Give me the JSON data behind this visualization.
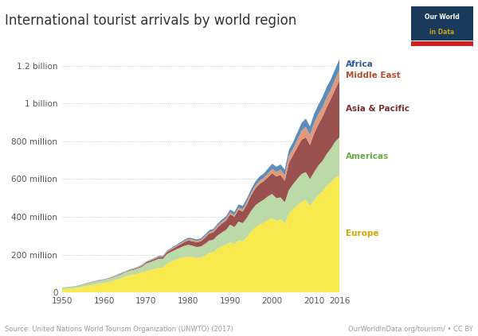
{
  "title": "International tourist arrivals by world region",
  "source_left": "Source: United Nations World Tourism Organization (UNWTO) (2017)",
  "source_right": "OurWorldInData.org/tourism/ • CC BY",
  "years": [
    1950,
    1951,
    1952,
    1953,
    1954,
    1955,
    1956,
    1957,
    1958,
    1959,
    1960,
    1961,
    1962,
    1963,
    1964,
    1965,
    1966,
    1967,
    1968,
    1969,
    1970,
    1971,
    1972,
    1973,
    1974,
    1975,
    1976,
    1977,
    1978,
    1979,
    1980,
    1981,
    1982,
    1983,
    1984,
    1985,
    1986,
    1987,
    1988,
    1989,
    1990,
    1991,
    1992,
    1993,
    1994,
    1995,
    1996,
    1997,
    1998,
    1999,
    2000,
    2001,
    2002,
    2003,
    2004,
    2005,
    2006,
    2007,
    2008,
    2009,
    2010,
    2011,
    2012,
    2013,
    2014,
    2015,
    2016
  ],
  "Europe": [
    16.8,
    18.5,
    20.0,
    22.0,
    25.0,
    30.0,
    34.0,
    38.0,
    42.0,
    46.0,
    50.4,
    55.0,
    60.0,
    67.0,
    74.0,
    83.0,
    90.0,
    94.0,
    100.0,
    107.0,
    112.0,
    118.0,
    124.0,
    130.0,
    131.0,
    153.9,
    163.0,
    172.0,
    179.0,
    186.0,
    189.5,
    186.0,
    182.0,
    184.0,
    194.0,
    209.1,
    213.0,
    232.0,
    243.0,
    253.0,
    265.6,
    255.0,
    276.0,
    271.0,
    293.0,
    323.4,
    345.0,
    359.0,
    370.0,
    383.0,
    392.8,
    378.0,
    387.0,
    365.0,
    418.0,
    441.0,
    461.0,
    480.0,
    489.4,
    459.7,
    487.8,
    516.4,
    534.8,
    566.3,
    581.8,
    607.7,
    619.7
  ],
  "Americas": [
    7.5,
    8.0,
    8.5,
    9.0,
    10.0,
    12.0,
    13.5,
    15.0,
    16.0,
    17.0,
    16.7,
    17.5,
    18.5,
    20.0,
    21.5,
    22.9,
    24.0,
    25.0,
    26.5,
    28.5,
    40.7,
    43.0,
    45.0,
    48.0,
    47.0,
    50.0,
    52.0,
    54.0,
    57.0,
    60.0,
    62.3,
    61.0,
    58.0,
    59.0,
    63.0,
    65.0,
    66.0,
    70.0,
    74.0,
    78.0,
    92.8,
    91.0,
    99.0,
    96.0,
    103.0,
    109.0,
    116.0,
    119.0,
    121.0,
    126.0,
    128.2,
    121.0,
    116.0,
    113.0,
    125.0,
    133.4,
    141.0,
    147.0,
    147.8,
    140.6,
    150.0,
    156.0,
    162.7,
    167.5,
    181.0,
    190.9,
    200.9
  ],
  "Asia_Pacific": [
    0.2,
    0.3,
    0.4,
    0.5,
    0.6,
    0.7,
    0.9,
    1.1,
    1.3,
    1.5,
    1.1,
    1.5,
    2.0,
    2.5,
    3.0,
    2.2,
    3.0,
    3.5,
    4.0,
    5.0,
    6.2,
    7.0,
    8.0,
    9.0,
    9.5,
    10.2,
    12.0,
    14.0,
    16.0,
    19.0,
    23.0,
    24.0,
    25.0,
    27.0,
    32.0,
    37.0,
    39.0,
    42.0,
    47.0,
    49.0,
    55.8,
    55.0,
    63.0,
    61.0,
    70.0,
    82.0,
    90.0,
    97.0,
    98.0,
    101.0,
    110.1,
    115.0,
    119.0,
    113.0,
    145.0,
    153.6,
    167.0,
    182.0,
    184.1,
    180.9,
    204.8,
    218.1,
    233.6,
    248.1,
    263.3,
    277.6,
    303.0
  ],
  "Middle_East": [
    0.2,
    0.3,
    0.4,
    0.4,
    0.5,
    0.5,
    0.6,
    0.7,
    0.8,
    1.0,
    0.8,
    1.0,
    1.2,
    1.5,
    1.8,
    1.5,
    1.8,
    2.0,
    2.2,
    2.5,
    1.7,
    2.0,
    2.3,
    2.6,
    2.8,
    3.0,
    3.5,
    4.0,
    4.5,
    5.5,
    7.5,
    8.0,
    7.5,
    8.0,
    8.5,
    8.0,
    8.5,
    9.0,
    9.5,
    10.0,
    9.7,
    8.5,
    11.0,
    12.0,
    13.5,
    13.7,
    15.0,
    16.0,
    17.0,
    20.0,
    24.1,
    24.0,
    28.0,
    30.0,
    36.0,
    33.7,
    40.0,
    47.0,
    55.5,
    52.6,
    54.7,
    54.0,
    51.5,
    51.6,
    48.5,
    53.3,
    54.4
  ],
  "Africa": [
    0.5,
    0.6,
    0.7,
    0.8,
    0.9,
    1.0,
    1.1,
    1.2,
    1.3,
    1.5,
    1.0,
    1.3,
    1.6,
    2.0,
    2.3,
    1.6,
    2.0,
    2.3,
    2.6,
    3.0,
    2.4,
    2.7,
    3.0,
    3.5,
    4.0,
    4.7,
    5.0,
    5.5,
    6.5,
    7.0,
    7.3,
    7.5,
    7.7,
    8.0,
    8.5,
    9.7,
    9.5,
    10.5,
    11.5,
    12.0,
    14.8,
    15.5,
    17.0,
    18.0,
    18.5,
    18.7,
    21.0,
    22.5,
    24.0,
    25.0,
    26.5,
    27.0,
    28.0,
    29.0,
    32.0,
    34.9,
    38.0,
    42.0,
    44.4,
    45.6,
    49.5,
    49.5,
    52.9,
    55.8,
    55.7,
    53.5,
    57.8
  ],
  "colors": {
    "Europe": "#f7e94e",
    "Americas": "#bcd9a8",
    "Asia_Pacific": "#9b5050",
    "Middle_East": "#e09a7a",
    "Africa": "#5b8db8"
  },
  "label_colors": {
    "Europe": "#c8a800",
    "Americas": "#6aaa45",
    "Asia_Pacific": "#7a2e2e",
    "Middle_East": "#b05030",
    "Africa": "#2a5a99"
  },
  "ytick_vals": [
    0,
    200,
    400,
    600,
    800,
    1000,
    1200
  ],
  "ytick_labels": [
    "0",
    "200 million",
    "400 million",
    "600 million",
    "800 million",
    "1 billion",
    "1.2 billion"
  ],
  "xticks": [
    1950,
    1960,
    1970,
    1980,
    1990,
    2000,
    2010,
    2016
  ],
  "logo_bg": "#1a3a5c",
  "logo_accent": "#c8a020"
}
